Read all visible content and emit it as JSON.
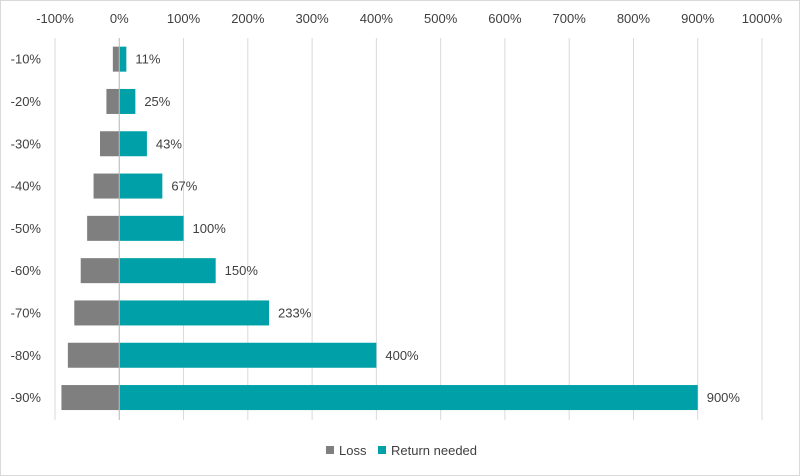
{
  "chart_data": {
    "type": "bar",
    "orientation": "horizontal",
    "categories": [
      "-10%",
      "-20%",
      "-30%",
      "-40%",
      "-50%",
      "-60%",
      "-70%",
      "-80%",
      "-90%"
    ],
    "series": [
      {
        "name": "Loss",
        "values": [
          -10,
          -20,
          -30,
          -40,
          -50,
          -60,
          -70,
          -80,
          -90
        ],
        "color": "#7f7f7f"
      },
      {
        "name": "Return needed",
        "values": [
          11,
          25,
          43,
          67,
          100,
          150,
          233,
          400,
          900
        ],
        "color": "#00a0a8"
      }
    ],
    "data_labels": [
      "11%",
      "25%",
      "43%",
      "67%",
      "100%",
      "150%",
      "233%",
      "400%",
      "900%"
    ],
    "x_tick_labels": [
      "-100%",
      "0%",
      "100%",
      "200%",
      "300%",
      "400%",
      "500%",
      "600%",
      "700%",
      "800%",
      "900%",
      "1000%"
    ],
    "x_ticks": [
      -100,
      0,
      100,
      200,
      300,
      400,
      500,
      600,
      700,
      800,
      900,
      1000
    ],
    "xlim": [
      -100,
      1000
    ],
    "x_axis_position": "top",
    "grid": true,
    "legend_position": "bottom",
    "title": "",
    "xlabel": "",
    "ylabel": ""
  }
}
